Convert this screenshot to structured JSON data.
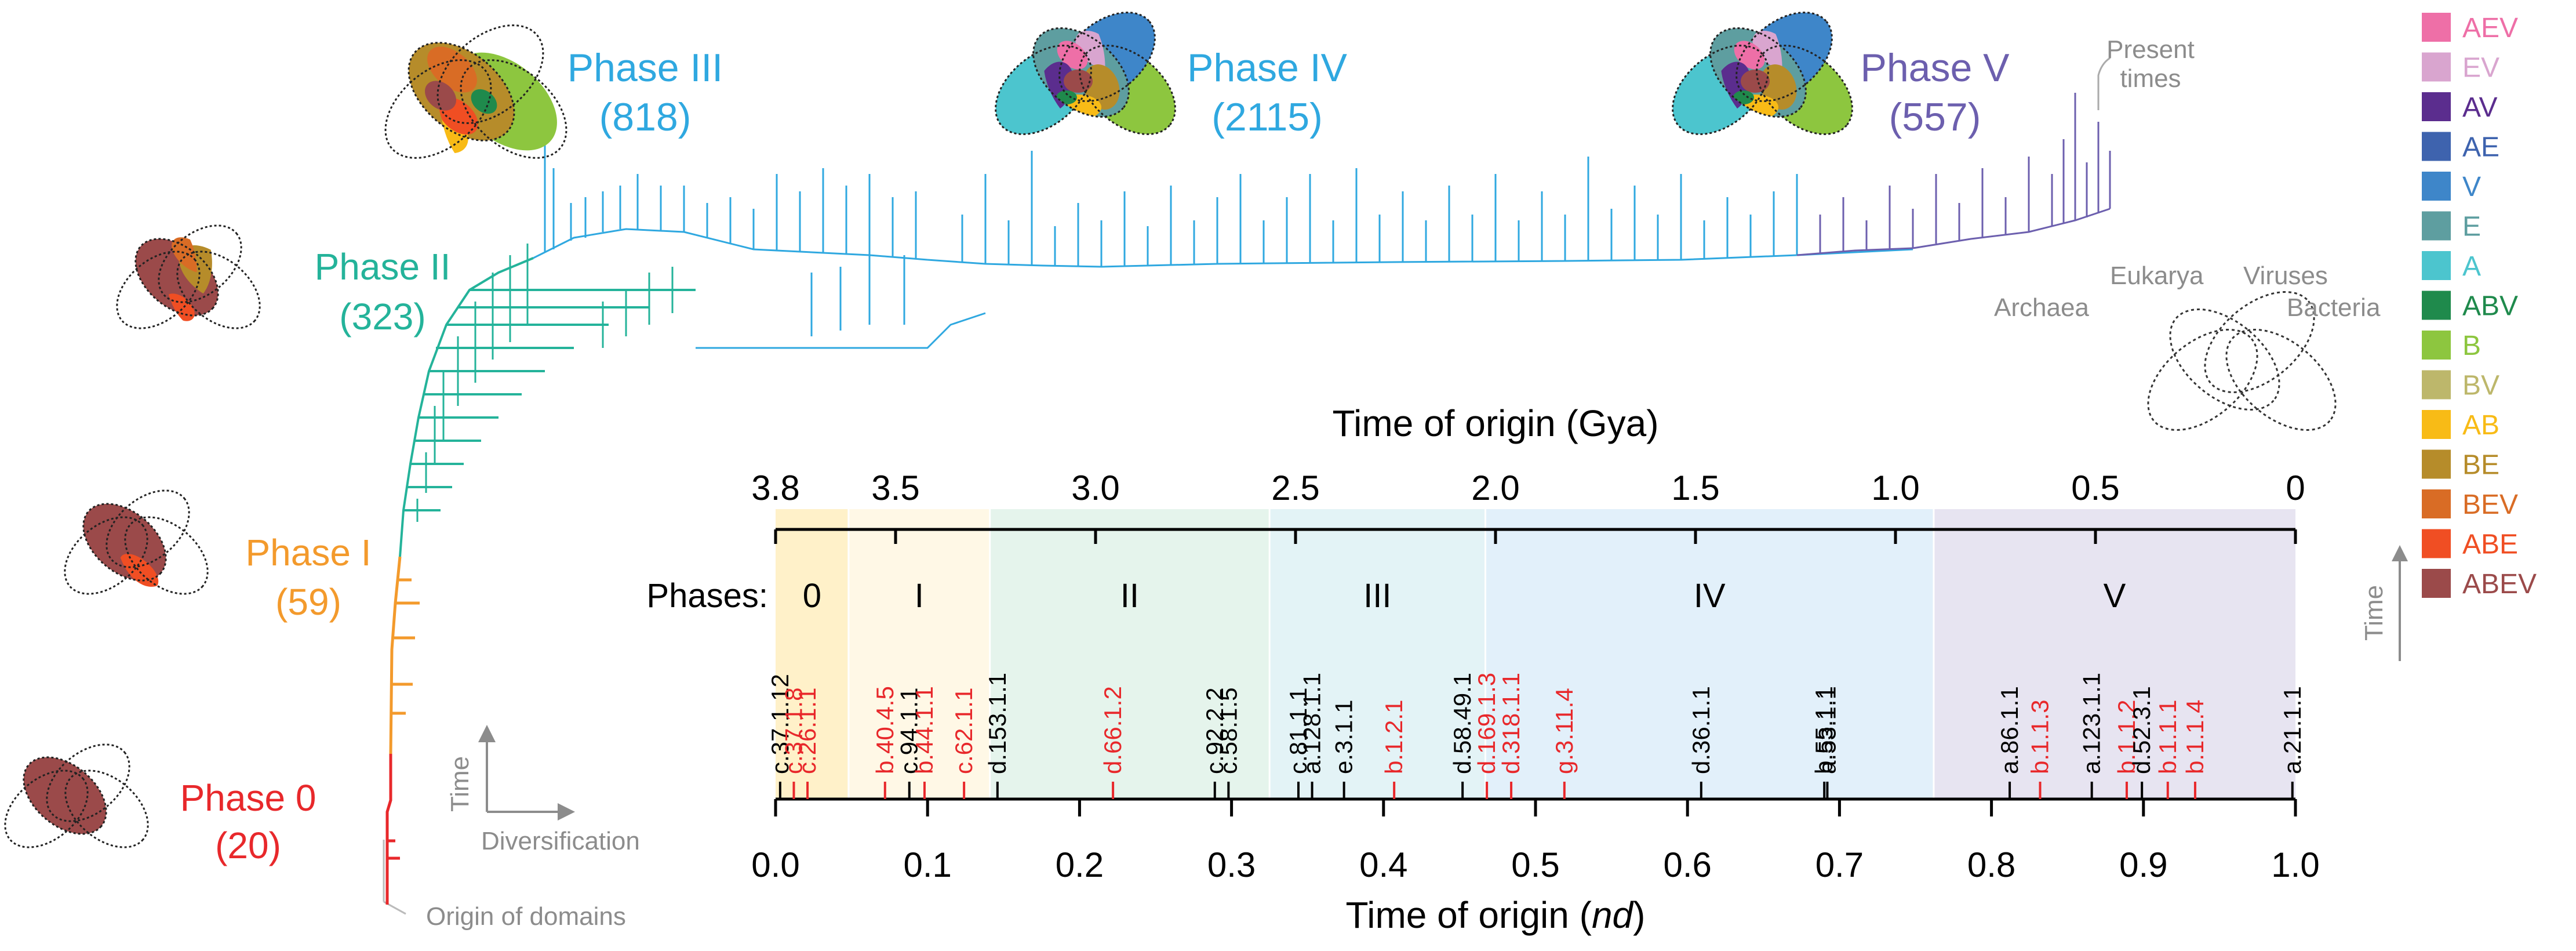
{
  "phase_labels": [
    {
      "name": "Phase 0",
      "count": "(20)",
      "color": "#E8282B"
    },
    {
      "name": "Phase I",
      "count": "(59)",
      "color": "#F39A2C"
    },
    {
      "name": "Phase II",
      "count": "(323)",
      "color": "#24B39A"
    },
    {
      "name": "Phase III",
      "count": "(818)",
      "color": "#2FA8E0"
    },
    {
      "name": "Phase IV",
      "count": "(2115)",
      "color": "#2FA8E0"
    },
    {
      "name": "Phase V",
      "count": "(557)",
      "color": "#6C5FAE"
    }
  ],
  "annotations": {
    "present_times": [
      "Present",
      "times"
    ],
    "origin_of_domains": "Origin of domains",
    "time": "Time",
    "diversification": "Diversification"
  },
  "domain_key": {
    "eukarya": "Eukarya",
    "viruses": "Viruses",
    "archaea": "Archaea",
    "bacteria": "Bacteria"
  },
  "legend": {
    "time_label": "Time",
    "items": [
      {
        "label": "AEV",
        "color": "#EE6FA7"
      },
      {
        "label": "EV",
        "color": "#D9A5CF"
      },
      {
        "label": "AV",
        "color": "#5B2D8E"
      },
      {
        "label": "AE",
        "color": "#3E63AE"
      },
      {
        "label": "V",
        "color": "#3E86C9"
      },
      {
        "label": "E",
        "color": "#5E9EA0"
      },
      {
        "label": "A",
        "color": "#4CC5CE"
      },
      {
        "label": "ABV",
        "color": "#1F8A4C"
      },
      {
        "label": "B",
        "color": "#8DC63F"
      },
      {
        "label": "BV",
        "color": "#BDB76B"
      },
      {
        "label": "AB",
        "color": "#F8BB16"
      },
      {
        "label": "BE",
        "color": "#B68C2A"
      },
      {
        "label": "BEV",
        "color": "#D96C25"
      },
      {
        "label": "ABE",
        "color": "#F04E23"
      },
      {
        "label": "ABEV",
        "color": "#9B4A4A"
      }
    ]
  },
  "timeline": {
    "gya_title": "Time of origin (Gya)",
    "gya_ticks": [
      "3.8",
      "3.5",
      "3.0",
      "2.5",
      "2.0",
      "1.5",
      "1.0",
      "0.5",
      "0"
    ],
    "nd_title_prefix": "Time of origin (",
    "nd_title_italic": "nd",
    "nd_title_suffix": ")",
    "nd_ticks": [
      "0.0",
      "0.1",
      "0.2",
      "0.3",
      "0.4",
      "0.5",
      "0.6",
      "0.7",
      "0.8",
      "0.9",
      "1.0"
    ],
    "phases_title": "Phases:",
    "phases": [
      {
        "label": "0",
        "start": 0.0,
        "end": 0.048,
        "color": "#FFF1C9"
      },
      {
        "label": "I",
        "start": 0.048,
        "end": 0.141,
        "color": "#FFF8E6"
      },
      {
        "label": "II",
        "start": 0.141,
        "end": 0.325,
        "color": "#E5F4EC"
      },
      {
        "label": "III",
        "start": 0.325,
        "end": 0.467,
        "color": "#E3F3F6"
      },
      {
        "label": "IV",
        "start": 0.467,
        "end": 0.762,
        "color": "#E2F0FA"
      },
      {
        "label": "V",
        "start": 0.762,
        "end": 1.0,
        "color": "#E7E4F1"
      }
    ],
    "markers": [
      {
        "label": "c.37.1.12",
        "nd": 0.003,
        "color": "#000000"
      },
      {
        "label": "c.37.1.8",
        "nd": 0.012,
        "color": "#E8282B"
      },
      {
        "label": "c.26.1.1",
        "nd": 0.021,
        "color": "#E8282B"
      },
      {
        "label": "b.40.4.5",
        "nd": 0.072,
        "color": "#E8282B"
      },
      {
        "label": "c.94.1.1",
        "nd": 0.088,
        "color": "#000000"
      },
      {
        "label": "b.44.1.1",
        "nd": 0.098,
        "color": "#E8282B"
      },
      {
        "label": "c.62.1.1",
        "nd": 0.124,
        "color": "#E8282B"
      },
      {
        "label": "d.153.1.1",
        "nd": 0.146,
        "color": "#000000"
      },
      {
        "label": "d.66.1.2",
        "nd": 0.222,
        "color": "#E8282B"
      },
      {
        "label": "c.92.2.2",
        "nd": 0.289,
        "color": "#000000"
      },
      {
        "label": "c.58.1.5",
        "nd": 0.298,
        "color": "#000000"
      },
      {
        "label": "c.81.1.1",
        "nd": 0.344,
        "color": "#000000"
      },
      {
        "label": "a.128.1.1",
        "nd": 0.353,
        "color": "#000000"
      },
      {
        "label": "e.3.1.1",
        "nd": 0.374,
        "color": "#000000"
      },
      {
        "label": "b.1.2.1",
        "nd": 0.407,
        "color": "#E8282B"
      },
      {
        "label": "d.58.49.1",
        "nd": 0.452,
        "color": "#000000"
      },
      {
        "label": "d.169.1.3",
        "nd": 0.468,
        "color": "#E8282B"
      },
      {
        "label": "d.318.1.1",
        "nd": 0.484,
        "color": "#E8282B"
      },
      {
        "label": "g.3.11.4",
        "nd": 0.519,
        "color": "#E8282B"
      },
      {
        "label": "d.36.1.1",
        "nd": 0.609,
        "color": "#000000"
      },
      {
        "label": "b.55.1.1",
        "nd": 0.69,
        "color": "#000000"
      },
      {
        "label": "a.53.1.1",
        "nd": 0.692,
        "color": "#000000"
      },
      {
        "label": "a.86.1.1",
        "nd": 0.812,
        "color": "#000000"
      },
      {
        "label": "b.1.1.3",
        "nd": 0.832,
        "color": "#E8282B"
      },
      {
        "label": "a.123.1.1",
        "nd": 0.866,
        "color": "#000000"
      },
      {
        "label": "b.1.1.2",
        "nd": 0.889,
        "color": "#E8282B"
      },
      {
        "label": "d.52.3.1",
        "nd": 0.899,
        "color": "#000000"
      },
      {
        "label": "b.1.1.1",
        "nd": 0.916,
        "color": "#E8282B"
      },
      {
        "label": "b.1.1.4",
        "nd": 0.934,
        "color": "#E8282B"
      },
      {
        "label": "a.21.1.1",
        "nd": 0.998,
        "color": "#000000"
      }
    ]
  }
}
